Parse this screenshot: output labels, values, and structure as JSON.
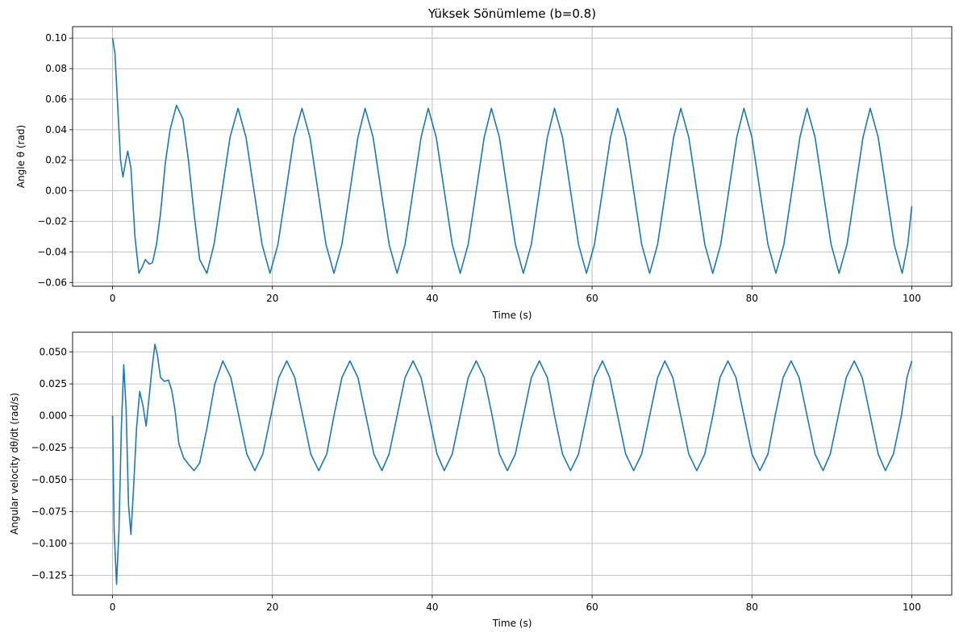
{
  "chart_data": [
    {
      "type": "line",
      "title": "Yüksek Sönümleme (b=0.8)",
      "xlabel": "Time (s)",
      "ylabel": "Angle θ (rad)",
      "xlim": [
        -5,
        105
      ],
      "ylim": [
        -0.0625,
        0.1075
      ],
      "xticks": [
        0,
        20,
        40,
        60,
        80,
        100
      ],
      "xtick_labels": [
        "0",
        "20",
        "40",
        "60",
        "80",
        "100"
      ],
      "yticks": [
        -0.06,
        -0.04,
        -0.02,
        0.0,
        0.02,
        0.04,
        0.06,
        0.08,
        0.1
      ],
      "ytick_labels": [
        "−0.06",
        "−0.04",
        "−0.02",
        "0.00",
        "0.02",
        "0.04",
        "0.06",
        "0.08",
        "0.10"
      ],
      "grid": true,
      "series": [
        {
          "color": "#1f77b4",
          "x": [
            0,
            0.3,
            0.7,
            1.0,
            1.3,
            1.6,
            1.9,
            2.3,
            2.8,
            3.3,
            3.7,
            4.1,
            4.6,
            5.0,
            5.5,
            6.0,
            6.6,
            7.2,
            8.0,
            8.8,
            9.5,
            10.2,
            10.9,
            11.8,
            12.7,
            13.7,
            14.7,
            15.7,
            16.7,
            17.7,
            18.7,
            19.7,
            20.7,
            21.7,
            22.7,
            23.7,
            24.7,
            25.7,
            26.7,
            27.7,
            28.7,
            29.7,
            30.7,
            31.6,
            32.6,
            33.6,
            34.6,
            35.6,
            36.6,
            37.6,
            38.6,
            39.5,
            40.5,
            41.5,
            42.5,
            43.5,
            44.5,
            45.5,
            46.5,
            47.4,
            48.4,
            49.4,
            50.4,
            51.4,
            52.4,
            53.4,
            54.4,
            55.3,
            56.3,
            57.3,
            58.3,
            59.3,
            60.3,
            61.3,
            62.3,
            63.2,
            64.2,
            65.2,
            66.2,
            67.2,
            68.2,
            69.2,
            70.2,
            71.1,
            72.1,
            73.1,
            74.1,
            75.1,
            76.1,
            77.1,
            78.1,
            79.0,
            80.0,
            81.0,
            82.0,
            83.0,
            84.0,
            85.0,
            86.0,
            86.9,
            87.9,
            88.9,
            89.9,
            90.9,
            91.9,
            92.9,
            93.9,
            94.8,
            95.8,
            96.8,
            97.8,
            98.8,
            99.5,
            100.0
          ],
          "y": [
            0.1,
            0.09,
            0.05,
            0.02,
            0.009,
            0.018,
            0.026,
            0.015,
            -0.03,
            -0.054,
            -0.05,
            -0.045,
            -0.048,
            -0.047,
            -0.035,
            -0.015,
            0.018,
            0.04,
            0.056,
            0.047,
            0.02,
            -0.015,
            -0.045,
            -0.054,
            -0.035,
            0.0,
            0.035,
            0.054,
            0.035,
            0.0,
            -0.035,
            -0.054,
            -0.035,
            0.0,
            0.035,
            0.054,
            0.035,
            0.0,
            -0.035,
            -0.054,
            -0.035,
            0.0,
            0.035,
            0.054,
            0.035,
            0.0,
            -0.035,
            -0.054,
            -0.035,
            0.0,
            0.035,
            0.054,
            0.035,
            0.0,
            -0.035,
            -0.054,
            -0.035,
            0.0,
            0.035,
            0.054,
            0.035,
            0.0,
            -0.035,
            -0.054,
            -0.035,
            0.0,
            0.035,
            0.054,
            0.035,
            0.0,
            -0.035,
            -0.054,
            -0.035,
            0.0,
            0.035,
            0.054,
            0.035,
            0.0,
            -0.035,
            -0.054,
            -0.035,
            0.0,
            0.035,
            0.054,
            0.035,
            0.0,
            -0.035,
            -0.054,
            -0.035,
            0.0,
            0.035,
            0.054,
            0.035,
            0.0,
            -0.035,
            -0.054,
            -0.035,
            0.0,
            0.035,
            0.054,
            0.035,
            0.0,
            -0.035,
            -0.054,
            -0.035,
            0.0,
            0.035,
            0.054,
            0.035,
            0.0,
            -0.035,
            -0.054,
            -0.035,
            -0.01
          ]
        }
      ]
    },
    {
      "type": "line",
      "title": "",
      "xlabel": "Time (s)",
      "ylabel": "Angular velocity dθ/dt (rad/s)",
      "xlim": [
        -5,
        105
      ],
      "ylim": [
        -0.1405,
        0.0655
      ],
      "xticks": [
        0,
        20,
        40,
        60,
        80,
        100
      ],
      "xtick_labels": [
        "0",
        "20",
        "40",
        "60",
        "80",
        "100"
      ],
      "yticks": [
        -0.125,
        -0.1,
        -0.075,
        -0.05,
        -0.025,
        0.0,
        0.025,
        0.05
      ],
      "ytick_labels": [
        "−0.125",
        "−0.100",
        "−0.075",
        "−0.050",
        "−0.025",
        "0.000",
        "0.025",
        "0.050"
      ],
      "grid": true,
      "series": [
        {
          "color": "#1f77b4",
          "x": [
            0,
            0.2,
            0.5,
            0.8,
            1.1,
            1.4,
            1.7,
            2.0,
            2.3,
            2.6,
            3.0,
            3.4,
            3.8,
            4.2,
            4.5,
            4.9,
            5.3,
            5.6,
            6.0,
            6.5,
            7.0,
            7.4,
            7.8,
            8.3,
            8.9,
            9.5,
            10.2,
            10.9,
            11.8,
            12.8,
            13.8,
            14.8,
            15.8,
            16.8,
            17.8,
            18.8,
            19.8,
            20.8,
            21.8,
            22.8,
            23.8,
            24.8,
            25.8,
            26.8,
            27.7,
            28.7,
            29.7,
            30.7,
            31.7,
            32.7,
            33.7,
            34.6,
            35.6,
            36.6,
            37.6,
            38.6,
            39.6,
            40.6,
            41.5,
            42.5,
            43.5,
            44.5,
            45.5,
            46.5,
            47.5,
            48.4,
            49.4,
            50.4,
            51.4,
            52.4,
            53.4,
            54.4,
            55.3,
            56.3,
            57.3,
            58.3,
            59.3,
            60.3,
            61.3,
            62.2,
            63.2,
            64.2,
            65.2,
            66.2,
            67.2,
            68.2,
            69.1,
            70.1,
            71.1,
            72.1,
            73.1,
            74.1,
            75.1,
            76.0,
            77.0,
            78.0,
            79.0,
            80.0,
            81.0,
            82.0,
            82.9,
            83.9,
            84.9,
            85.9,
            86.9,
            87.9,
            88.9,
            89.8,
            90.8,
            91.8,
            92.8,
            93.8,
            94.8,
            95.8,
            96.7,
            97.7,
            98.7,
            99.4,
            100.0
          ],
          "y": [
            0.0,
            -0.09,
            -0.132,
            -0.09,
            -0.01,
            0.04,
            0.005,
            -0.07,
            -0.093,
            -0.06,
            -0.01,
            0.019,
            0.008,
            -0.008,
            0.01,
            0.035,
            0.056,
            0.048,
            0.03,
            0.027,
            0.028,
            0.02,
            0.005,
            -0.022,
            -0.033,
            -0.038,
            -0.043,
            -0.037,
            -0.01,
            0.025,
            0.043,
            0.03,
            0.0,
            -0.03,
            -0.043,
            -0.03,
            0.0,
            0.03,
            0.043,
            0.03,
            0.0,
            -0.03,
            -0.043,
            -0.03,
            0.0,
            0.03,
            0.043,
            0.03,
            0.0,
            -0.03,
            -0.043,
            -0.03,
            0.0,
            0.03,
            0.043,
            0.03,
            0.0,
            -0.03,
            -0.043,
            -0.03,
            0.0,
            0.03,
            0.043,
            0.03,
            0.0,
            -0.03,
            -0.043,
            -0.03,
            0.0,
            0.03,
            0.043,
            0.03,
            0.0,
            -0.03,
            -0.043,
            -0.03,
            0.0,
            0.03,
            0.043,
            0.03,
            0.0,
            -0.03,
            -0.043,
            -0.03,
            0.0,
            0.03,
            0.043,
            0.03,
            0.0,
            -0.03,
            -0.043,
            -0.03,
            0.0,
            0.03,
            0.043,
            0.03,
            0.0,
            -0.03,
            -0.043,
            -0.03,
            0.0,
            0.03,
            0.043,
            0.03,
            0.0,
            -0.03,
            -0.043,
            -0.03,
            0.0,
            0.03,
            0.043,
            0.03,
            0.0,
            -0.03,
            -0.043,
            -0.03,
            0.0,
            0.03,
            0.043
          ]
        }
      ]
    }
  ]
}
